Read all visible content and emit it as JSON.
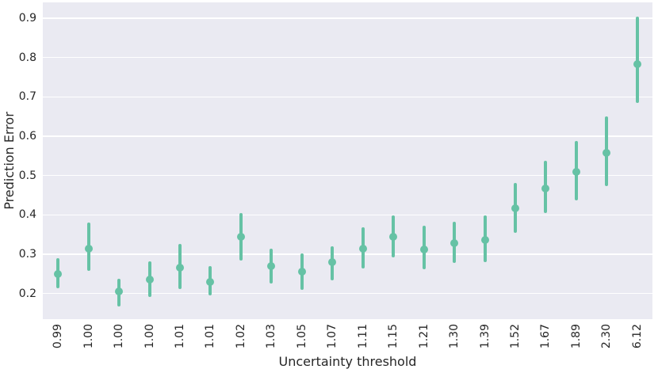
{
  "chart_data": {
    "type": "scatter",
    "subtype": "pointplot-with-error-bars",
    "title": "",
    "xlabel": "Uncertainty threshold",
    "ylabel": "Prediction Error",
    "categories": [
      "0.99",
      "1.00",
      "1.00",
      "1.00",
      "1.01",
      "1.01",
      "1.02",
      "1.03",
      "1.05",
      "1.07",
      "1.11",
      "1.15",
      "1.21",
      "1.30",
      "1.39",
      "1.52",
      "1.67",
      "1.89",
      "2.30",
      "6.12"
    ],
    "series": [
      {
        "name": "prediction-error",
        "values": [
          0.25,
          0.315,
          0.205,
          0.235,
          0.265,
          0.23,
          0.345,
          0.27,
          0.255,
          0.28,
          0.315,
          0.344,
          0.313,
          0.329,
          0.337,
          0.416,
          0.468,
          0.509,
          0.558,
          0.784
        ],
        "err_low": [
          0.213,
          0.257,
          0.168,
          0.191,
          0.211,
          0.195,
          0.283,
          0.225,
          0.21,
          0.233,
          0.263,
          0.291,
          0.262,
          0.278,
          0.28,
          0.355,
          0.405,
          0.437,
          0.473,
          0.685
        ],
        "err_high": [
          0.289,
          0.38,
          0.237,
          0.282,
          0.327,
          0.269,
          0.405,
          0.315,
          0.303,
          0.321,
          0.369,
          0.398,
          0.372,
          0.382,
          0.399,
          0.482,
          0.538,
          0.587,
          0.651,
          0.903
        ]
      }
    ],
    "yticks": [
      {
        "v": 0.9,
        "label": "0.9"
      },
      {
        "v": 0.8,
        "label": "0.8"
      },
      {
        "v": 0.7,
        "label": "0.7"
      },
      {
        "v": 0.6,
        "label": "0.6"
      },
      {
        "v": 0.5,
        "label": "0.5"
      },
      {
        "v": 0.4,
        "label": "0.4"
      },
      {
        "v": 0.3,
        "label": "0.3"
      },
      {
        "v": 0.2,
        "label": "0.2"
      }
    ],
    "ylim": [
      0.135,
      0.94
    ],
    "grid": true,
    "legend": "none",
    "colors": {
      "marker": "#66c2a5",
      "plot_background": "#eaeaf2",
      "gridline": "#ffffff",
      "text": "#262626",
      "figure_background": "#ffffff"
    }
  }
}
